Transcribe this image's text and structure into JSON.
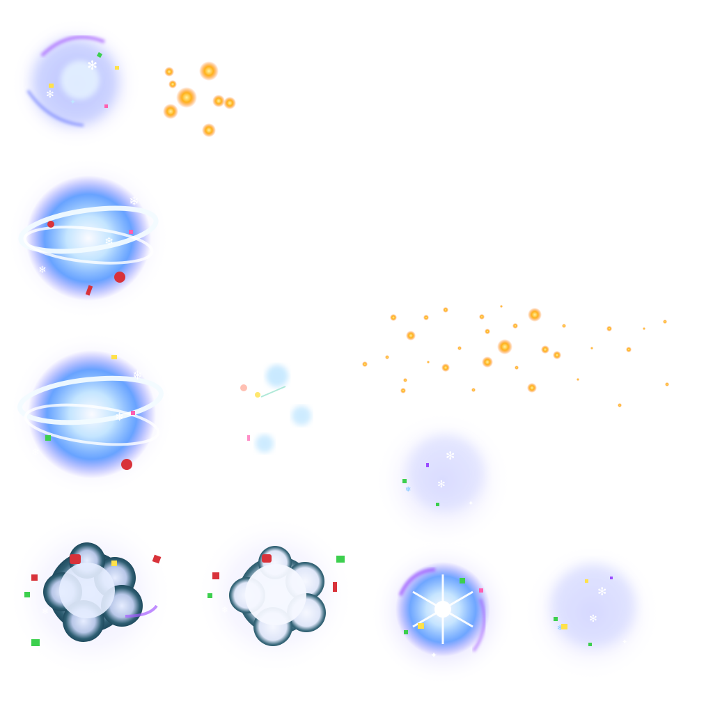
{
  "sheet": {
    "kind": "sprite-sheet",
    "background": "#ffffff",
    "palette": {
      "ice_core": "#e8f6ff",
      "ice_blue": "#2f86ff",
      "glow_violet": "#8a7cff",
      "haze_lavender": "#b9b2ff",
      "ring_white": "#f2fbff",
      "ember_orange": "#ff8a1a",
      "ember_gold": "#ffd21a",
      "smoke_teal": "#2f5f73",
      "smoke_light": "#eef3ff",
      "confetti_pink": "#ff5fb0",
      "confetti_green": "#3ccf4e",
      "confetti_yellow": "#ffe14a",
      "gift_red": "#d8323a"
    }
  },
  "sprites": [
    {
      "name": "sprite-snowburst-small",
      "type": "ice-burst"
    },
    {
      "name": "sprite-ember-cluster",
      "type": "ember-particles",
      "count": 8
    },
    {
      "name": "sprite-ring-burst-a",
      "type": "ice-ring-burst"
    },
    {
      "name": "sprite-ring-burst-b",
      "type": "ice-ring-burst"
    },
    {
      "name": "sprite-faint-sparkles",
      "type": "sparkle-particles"
    },
    {
      "name": "sprite-ember-trail",
      "type": "ember-particles",
      "count": 32
    },
    {
      "name": "sprite-fading-burst",
      "type": "soft-ice-burst"
    },
    {
      "name": "sprite-smoke-cloud-dark",
      "type": "smoke-cloud"
    },
    {
      "name": "sprite-smoke-cloud-light",
      "type": "smoke-cloud"
    },
    {
      "name": "sprite-snowflake-burst",
      "type": "snowflake-burst"
    },
    {
      "name": "sprite-soft-haze-burst",
      "type": "soft-ice-burst"
    }
  ]
}
